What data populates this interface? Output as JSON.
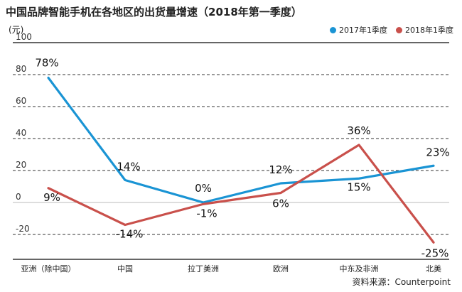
{
  "chart_data": {
    "type": "line",
    "title": "中国品牌智能手机在各地区的出货量增速（2018年第一季度）",
    "unit": "(元)",
    "source": "资料来源：Counterpoint",
    "categories": [
      "亚洲（除中国）",
      "中国",
      "拉丁美洲",
      "欧洲",
      "中东及非洲",
      "北美"
    ],
    "ylim": [
      -30,
      100
    ],
    "yticks": [
      "100",
      "80",
      "60",
      "40",
      "20",
      "0",
      "-20"
    ],
    "ytick_values": [
      100,
      80,
      60,
      40,
      20,
      0,
      -20
    ],
    "grid": true,
    "legend_position": "top-right",
    "series": [
      {
        "name": "2017年1季度",
        "color": "#1a94d4",
        "values": [
          78,
          14,
          0,
          12,
          15,
          23
        ],
        "labels": [
          "78%",
          "14%",
          "0%",
          "12%",
          "15%",
          "23%"
        ]
      },
      {
        "name": "2018年1季度",
        "color": "#c9504b",
        "values": [
          9,
          -14,
          -1,
          6,
          36,
          -25
        ],
        "labels": [
          "9%",
          "-14%",
          "-1%",
          "6%",
          "36%",
          "-25%"
        ]
      }
    ]
  }
}
